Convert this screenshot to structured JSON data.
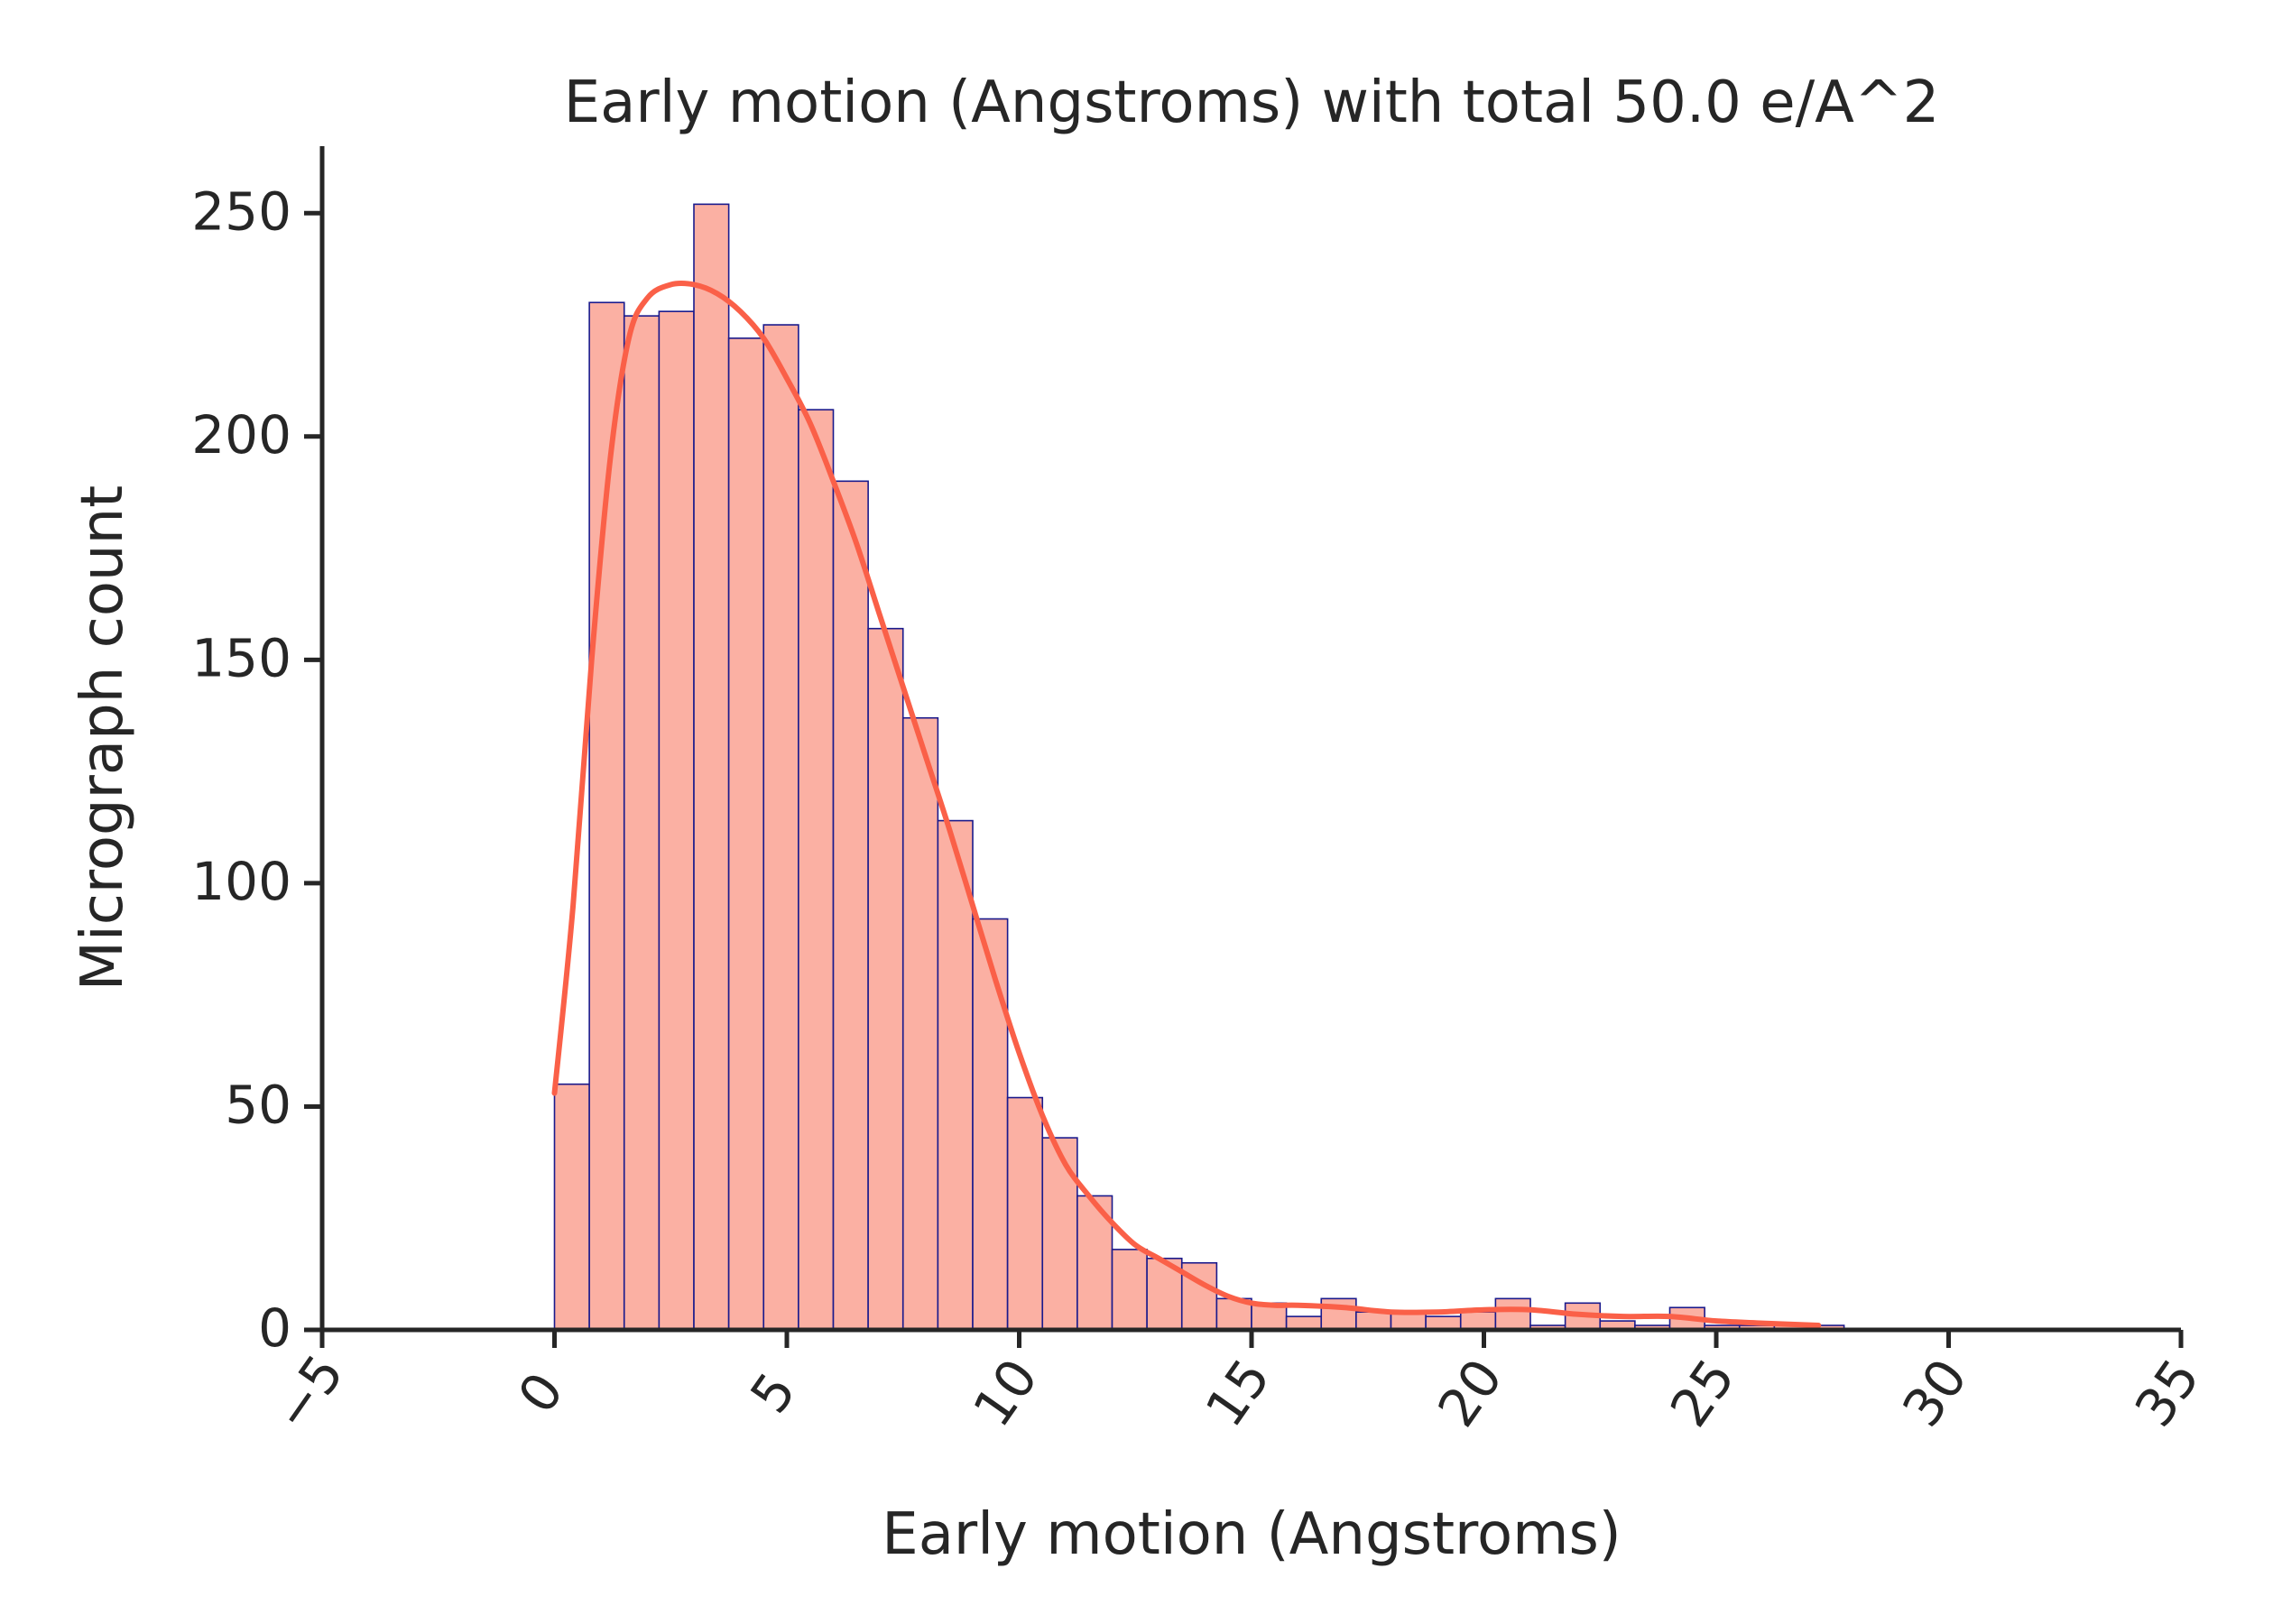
{
  "chart_data": {
    "type": "bar",
    "subtype": "histogram with kde line",
    "title": "Early motion (Angstroms) with total 50.0 e/A^2",
    "xlabel": "Early motion (Angstroms)",
    "ylabel": "Micrograph count",
    "xlim": [
      -5,
      35
    ],
    "ylim": [
      0,
      265
    ],
    "xticks": [
      -5,
      0,
      5,
      10,
      15,
      20,
      25,
      30,
      35
    ],
    "xtick_labels": [
      "−5",
      "0",
      "5",
      "10",
      "15",
      "20",
      "25",
      "30",
      "35"
    ],
    "yticks": [
      0,
      50,
      100,
      150,
      200,
      250
    ],
    "ytick_labels": [
      "0",
      "50",
      "100",
      "150",
      "200",
      "250"
    ],
    "bin_start": 0,
    "bin_width": 0.75,
    "counts": [
      55,
      230,
      227,
      228,
      252,
      222,
      225,
      206,
      190,
      157,
      137,
      114,
      92,
      52,
      43,
      30,
      18,
      16,
      15,
      7,
      6,
      3,
      7,
      4,
      4,
      3,
      4,
      7,
      1,
      6,
      2,
      1,
      5,
      1,
      1,
      1,
      1
    ],
    "kde": {
      "x": [
        0,
        0.4,
        0.8,
        1.2,
        1.6,
        2.0,
        2.5,
        3.0,
        3.5,
        4.0,
        4.5,
        5.0,
        5.5,
        6.0,
        6.5,
        7.0,
        7.5,
        8.0,
        8.5,
        9.0,
        9.5,
        10.0,
        10.5,
        11.0,
        11.5,
        12.0,
        12.5,
        13.0,
        13.5,
        14.0,
        14.5,
        15.0,
        15.5,
        16.0,
        17.0,
        18.0,
        19.0,
        20.0,
        21.0,
        22.0,
        23.0,
        24.0,
        25.0,
        26.0,
        27.2
      ],
      "y": [
        53,
        95,
        150,
        195,
        222,
        231,
        234,
        234,
        232,
        228,
        222,
        213,
        203,
        190,
        176,
        160,
        144,
        128,
        112,
        95,
        78,
        62,
        48,
        37,
        30,
        24,
        19,
        16,
        13,
        10,
        7.5,
        6,
        5.5,
        5.5,
        5,
        4,
        4,
        4.5,
        4.5,
        3.5,
        3,
        3,
        2,
        1.5,
        1
      ]
    },
    "colors": {
      "bar_fill": "#fbb0a3",
      "bar_edge": "#1a1a8c",
      "kde_line": "#fa6048",
      "axis": "#262626"
    },
    "grid": false,
    "legend": "none"
  }
}
